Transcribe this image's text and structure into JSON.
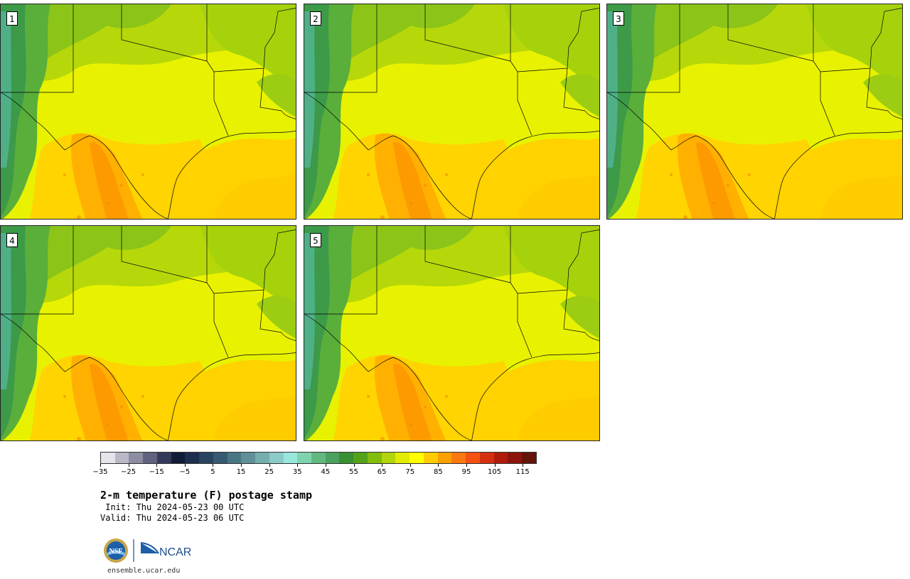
{
  "panels": [
    {
      "label": "1"
    },
    {
      "label": "2"
    },
    {
      "label": "3"
    },
    {
      "label": "4"
    },
    {
      "label": "5"
    }
  ],
  "colorbar": {
    "colors": [
      "#e4e4ea",
      "#b8b8c6",
      "#8c8ca2",
      "#60627e",
      "#343a5c",
      "#111c36",
      "#1c2e4e",
      "#284460",
      "#365a70",
      "#4a7684",
      "#5f9098",
      "#76aeae",
      "#8ccaca",
      "#98e6dc",
      "#7ed4ae",
      "#62b880",
      "#4ca060",
      "#389032",
      "#54a21c",
      "#82bc0c",
      "#b2d40a",
      "#e2ec02",
      "#ffff00",
      "#ffcc00",
      "#fca000",
      "#fc7810",
      "#f45010",
      "#d43010",
      "#b01c0c",
      "#8c140c",
      "#641408"
    ],
    "ticks": [
      "−35",
      "−25",
      "−15",
      "−5",
      "5",
      "15",
      "25",
      "35",
      "45",
      "55",
      "65",
      "75",
      "85",
      "95",
      "105",
      "115"
    ]
  },
  "title": "2-m temperature (F) postage stamp",
  "init": " Init: Thu 2024-05-23 00 UTC",
  "valid": "Valid: Thu 2024-05-23 06 UTC",
  "logos": {
    "nsf": "NSF",
    "ncar": "NCAR"
  },
  "website": "ensemble.ucar.edu"
}
